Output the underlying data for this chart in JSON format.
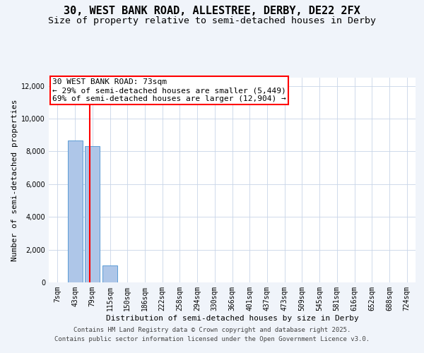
{
  "title_line1": "30, WEST BANK ROAD, ALLESTREE, DERBY, DE22 2FX",
  "title_line2": "Size of property relative to semi-detached houses in Derby",
  "xlabel": "Distribution of semi-detached houses by size in Derby",
  "ylabel": "Number of semi-detached properties",
  "categories": [
    "7sqm",
    "43sqm",
    "79sqm",
    "115sqm",
    "150sqm",
    "186sqm",
    "222sqm",
    "258sqm",
    "294sqm",
    "330sqm",
    "366sqm",
    "401sqm",
    "437sqm",
    "473sqm",
    "509sqm",
    "545sqm",
    "581sqm",
    "616sqm",
    "652sqm",
    "688sqm",
    "724sqm"
  ],
  "values": [
    0,
    8650,
    8300,
    1050,
    0,
    0,
    0,
    0,
    0,
    0,
    0,
    0,
    0,
    0,
    0,
    0,
    0,
    0,
    0,
    0,
    0
  ],
  "bar_color": "#aec6e8",
  "bar_edge_color": "#5b9bd5",
  "vline_color": "red",
  "annotation_text": "30 WEST BANK ROAD: 73sqm\n← 29% of semi-detached houses are smaller (5,449)\n69% of semi-detached houses are larger (12,904) →",
  "ylim": [
    0,
    12500
  ],
  "yticks": [
    0,
    2000,
    4000,
    6000,
    8000,
    10000,
    12000
  ],
  "bg_color": "#f0f4fa",
  "plot_bg_color": "#ffffff",
  "footer_line1": "Contains HM Land Registry data © Crown copyright and database right 2025.",
  "footer_line2": "Contains public sector information licensed under the Open Government Licence v3.0.",
  "title_fontsize": 11,
  "subtitle_fontsize": 9.5,
  "axis_label_fontsize": 8,
  "tick_fontsize": 7,
  "annotation_fontsize": 8,
  "footer_fontsize": 6.5
}
